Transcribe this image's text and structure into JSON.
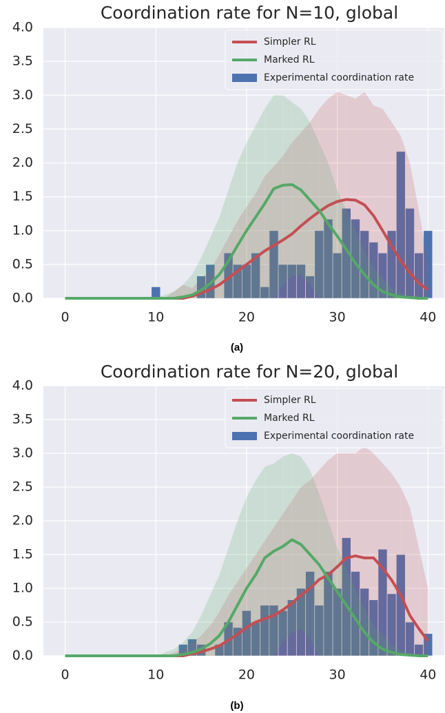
{
  "chart_data": [
    {
      "type": "combo",
      "title": "Coordination rate for N=10, global",
      "caption": "(a)",
      "xlim": [
        -2.4,
        41.8
      ],
      "ylim": [
        0,
        4
      ],
      "xticks": [
        0,
        10,
        20,
        30,
        40
      ],
      "yticks": [
        {
          "value": 0,
          "label": "0.0"
        },
        0.5,
        {
          "value": 1,
          "label": "1.0"
        },
        1.5,
        {
          "value": 2,
          "label": "2.0"
        },
        2.5,
        {
          "value": 3,
          "label": "3.0"
        },
        3.5,
        {
          "value": 4,
          "label": "4.0"
        }
      ],
      "grid": true,
      "legend": "upper right",
      "x": [
        0,
        1,
        2,
        3,
        4,
        5,
        6,
        7,
        8,
        9,
        10,
        11,
        12,
        13,
        14,
        15,
        16,
        17,
        18,
        19,
        20,
        21,
        22,
        23,
        24,
        25,
        26,
        27,
        28,
        29,
        30,
        31,
        32,
        33,
        34,
        35,
        36,
        37,
        38,
        39,
        40
      ],
      "series": [
        {
          "name": "Simpler RL",
          "type": "line",
          "color": "#c44e52",
          "values": [
            0,
            0,
            0,
            0,
            0,
            0,
            0,
            0,
            0,
            0,
            0,
            0,
            0,
            0,
            0.03,
            0.08,
            0.13,
            0.2,
            0.3,
            0.4,
            0.5,
            0.6,
            0.7,
            0.78,
            0.86,
            0.95,
            1.07,
            1.18,
            1.28,
            1.37,
            1.43,
            1.46,
            1.45,
            1.38,
            1.22,
            1.0,
            0.77,
            0.55,
            0.38,
            0.22,
            0.13
          ],
          "lower": [
            0,
            0,
            0,
            0,
            0,
            0,
            0,
            0,
            0,
            0,
            0,
            0,
            0,
            0,
            0,
            0,
            0,
            0,
            0,
            0,
            0,
            0,
            0,
            0,
            0,
            0,
            0,
            0,
            0,
            0,
            0,
            0,
            0,
            0,
            0,
            0,
            0,
            0,
            0,
            0,
            0
          ],
          "upper": [
            0,
            0,
            0,
            0,
            0,
            0,
            0,
            0,
            0,
            0,
            0,
            0,
            0.1,
            0.2,
            0.15,
            0.3,
            0.4,
            0.65,
            0.9,
            1.15,
            1.35,
            1.55,
            1.8,
            1.95,
            2.1,
            2.3,
            2.45,
            2.6,
            2.8,
            2.95,
            3.05,
            3.0,
            2.95,
            3.05,
            2.85,
            2.8,
            2.6,
            2.4,
            2.0,
            1.3,
            0.5
          ]
        },
        {
          "name": "Marked RL",
          "type": "line",
          "color": "#55a868",
          "values": [
            0,
            0,
            0,
            0,
            0,
            0,
            0,
            0,
            0,
            0,
            0,
            0,
            0,
            0.02,
            0.05,
            0.12,
            0.22,
            0.35,
            0.55,
            0.78,
            1.0,
            1.2,
            1.4,
            1.62,
            1.67,
            1.68,
            1.6,
            1.45,
            1.3,
            1.1,
            0.92,
            0.72,
            0.52,
            0.35,
            0.2,
            0.1,
            0.05,
            0.02,
            0.01,
            0,
            0
          ],
          "lower": [
            0,
            0,
            0,
            0,
            0,
            0,
            0,
            0,
            0,
            0,
            0,
            0,
            0,
            0,
            0,
            0,
            0,
            0,
            0,
            0,
            0,
            0,
            0,
            0,
            0.2,
            0.33,
            0.35,
            0.2,
            0,
            0,
            0,
            0,
            0,
            0,
            0,
            0,
            0,
            0,
            0,
            0,
            0
          ],
          "upper": [
            0,
            0,
            0,
            0,
            0,
            0,
            0,
            0,
            0,
            0,
            0,
            0.05,
            0.1,
            0.2,
            0.35,
            0.6,
            0.9,
            1.2,
            1.6,
            2.0,
            2.3,
            2.55,
            2.8,
            3.0,
            3.0,
            2.9,
            2.8,
            2.6,
            2.3,
            2.0,
            1.6,
            1.3,
            1.0,
            0.7,
            0.45,
            0.3,
            0.15,
            0.08,
            0.03,
            0,
            0
          ]
        },
        {
          "name": "Experimental coordination rate",
          "type": "bar",
          "color": "#4c72b0",
          "x": [
            10,
            11,
            12,
            13,
            14,
            15,
            16,
            17,
            18,
            19,
            20,
            21,
            22,
            23,
            24,
            25,
            26,
            27,
            28,
            29,
            30,
            31,
            32,
            33,
            34,
            35,
            36,
            37,
            38,
            39,
            40
          ],
          "values": [
            0.17,
            0,
            0,
            0,
            0,
            0.33,
            0.5,
            0,
            0.67,
            0.5,
            0.5,
            0.67,
            0.17,
            1.0,
            0.5,
            0.5,
            0.5,
            0.33,
            1.0,
            1.17,
            0.67,
            1.33,
            1.17,
            1.0,
            0.83,
            0.67,
            1.0,
            2.17,
            1.33,
            0.67,
            1.0
          ]
        }
      ]
    },
    {
      "type": "combo",
      "title": "Coordination rate for N=20, global",
      "caption": "(b)",
      "xlim": [
        -2.4,
        41.8
      ],
      "ylim": [
        0,
        4
      ],
      "xticks": [
        0,
        10,
        20,
        30,
        40
      ],
      "yticks": [
        {
          "value": 0,
          "label": "0.0"
        },
        0.5,
        {
          "value": 1,
          "label": "1.0"
        },
        1.5,
        {
          "value": 2,
          "label": "2.0"
        },
        2.5,
        {
          "value": 3,
          "label": "3.0"
        },
        3.5,
        {
          "value": 4,
          "label": "4.0"
        }
      ],
      "grid": true,
      "legend": "upper right",
      "x": [
        0,
        1,
        2,
        3,
        4,
        5,
        6,
        7,
        8,
        9,
        10,
        11,
        12,
        13,
        14,
        15,
        16,
        17,
        18,
        19,
        20,
        21,
        22,
        23,
        24,
        25,
        26,
        27,
        28,
        29,
        30,
        31,
        32,
        33,
        34,
        35,
        36,
        37,
        38,
        39,
        40
      ],
      "series": [
        {
          "name": "Simpler RL",
          "type": "line",
          "color": "#c44e52",
          "values": [
            0,
            0,
            0,
            0,
            0,
            0,
            0,
            0,
            0,
            0,
            0,
            0,
            0,
            0,
            0.03,
            0.06,
            0.1,
            0.15,
            0.23,
            0.32,
            0.42,
            0.5,
            0.55,
            0.6,
            0.68,
            0.78,
            0.9,
            1.0,
            1.13,
            1.2,
            1.32,
            1.45,
            1.48,
            1.45,
            1.45,
            1.3,
            1.12,
            0.9,
            0.6,
            0.4,
            0.22
          ],
          "lower": [
            0,
            0,
            0,
            0,
            0,
            0,
            0,
            0,
            0,
            0,
            0,
            0,
            0,
            0,
            0,
            0,
            0,
            0,
            0,
            0,
            0,
            0,
            0,
            0,
            0,
            0,
            0,
            0,
            0,
            0,
            0,
            0,
            0,
            0,
            0,
            0,
            0,
            0,
            0,
            0,
            0
          ],
          "upper": [
            0,
            0,
            0,
            0,
            0,
            0,
            0,
            0,
            0,
            0,
            0,
            0,
            0.05,
            0.1,
            0.2,
            0.3,
            0.45,
            0.65,
            0.9,
            1.1,
            1.3,
            1.5,
            1.7,
            1.9,
            2.1,
            2.3,
            2.5,
            2.6,
            2.75,
            2.9,
            3.0,
            3.0,
            3.0,
            3.1,
            3.0,
            2.85,
            2.7,
            2.5,
            2.2,
            1.6,
            1.0
          ]
        },
        {
          "name": "Marked RL",
          "type": "line",
          "color": "#55a868",
          "values": [
            0,
            0,
            0,
            0,
            0,
            0,
            0,
            0,
            0,
            0,
            0,
            0,
            0,
            0.02,
            0.05,
            0.1,
            0.18,
            0.3,
            0.5,
            0.75,
            1.0,
            1.2,
            1.45,
            1.55,
            1.62,
            1.72,
            1.65,
            1.5,
            1.35,
            1.15,
            0.95,
            0.75,
            0.55,
            0.35,
            0.2,
            0.1,
            0.05,
            0.02,
            0.01,
            0,
            0
          ],
          "lower": [
            0,
            0,
            0,
            0,
            0,
            0,
            0,
            0,
            0,
            0,
            0,
            0,
            0,
            0,
            0,
            0,
            0,
            0,
            0,
            0,
            0,
            0,
            0,
            0,
            0.2,
            0.35,
            0.4,
            0.25,
            0,
            0,
            0,
            0,
            0,
            0,
            0,
            0,
            0,
            0,
            0,
            0,
            0
          ],
          "upper": [
            0,
            0,
            0,
            0,
            0,
            0,
            0,
            0,
            0,
            0,
            0,
            0.05,
            0.1,
            0.2,
            0.35,
            0.6,
            0.9,
            1.2,
            1.6,
            2.0,
            2.35,
            2.6,
            2.8,
            2.85,
            2.95,
            3.0,
            2.95,
            2.75,
            2.4,
            2.0,
            1.6,
            1.3,
            1.0,
            0.7,
            0.45,
            0.3,
            0.15,
            0.08,
            0.03,
            0,
            0
          ]
        },
        {
          "name": "Experimental coordination rate",
          "type": "bar",
          "color": "#4c72b0",
          "x": [
            10,
            11,
            12,
            13,
            14,
            15,
            16,
            17,
            18,
            19,
            20,
            21,
            22,
            23,
            24,
            25,
            26,
            27,
            28,
            29,
            30,
            31,
            32,
            33,
            34,
            35,
            36,
            37,
            38,
            39,
            40
          ],
          "values": [
            0,
            0,
            0,
            0.17,
            0.25,
            0.17,
            0,
            0.17,
            0.5,
            0.42,
            0.67,
            0.5,
            0.75,
            0.75,
            0.67,
            0.83,
            1.0,
            1.25,
            0.75,
            1.25,
            1.0,
            1.75,
            1.25,
            1.0,
            0.83,
            1.58,
            0.92,
            1.5,
            0.5,
            0.17,
            0.33
          ]
        }
      ]
    }
  ]
}
